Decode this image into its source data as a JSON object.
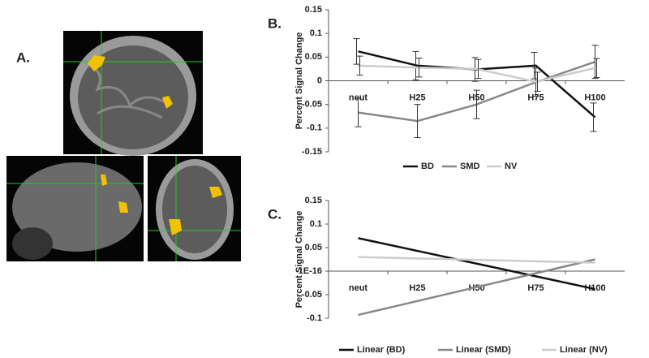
{
  "panel_label": "A.",
  "chart_data": [
    {
      "type": "line",
      "label": "B.",
      "y_label": "Percent Signal Change",
      "categories": [
        "neut",
        "H25",
        "H50",
        "H75",
        "H100"
      ],
      "ylim": [
        -0.15,
        0.15
      ],
      "yticks": [
        -0.15,
        -0.1,
        -0.05,
        0,
        0.05,
        0.1,
        0.15
      ],
      "series": [
        {
          "name": "BD",
          "color": "#111111",
          "values": [
            0.062,
            0.032,
            0.024,
            0.032,
            -0.077
          ],
          "errors": [
            0.027,
            0.03,
            0.025,
            0.028,
            0.03
          ]
        },
        {
          "name": "SMD",
          "color": "#888888",
          "values": [
            -0.067,
            -0.085,
            -0.05,
            -0.003,
            0.04
          ],
          "errors": [
            0.03,
            0.035,
            0.03,
            0.03,
            0.035
          ]
        },
        {
          "name": "NV",
          "color": "#cccccc",
          "values": [
            0.032,
            0.028,
            0.025,
            -0.002,
            0.027
          ],
          "errors": [
            0.02,
            0.02,
            0.02,
            0.02,
            0.02
          ]
        }
      ]
    },
    {
      "type": "line",
      "label": "C.",
      "y_label": "Percent Signal Change",
      "categories": [
        "neut",
        "H25",
        "H50",
        "H75",
        "H100"
      ],
      "ylim": [
        -0.1,
        0.15
      ],
      "yticks": [
        -0.1,
        -0.05,
        {
          "value": 0,
          "label": "1E-16"
        },
        0.05,
        0.1,
        0.15
      ],
      "series": [
        {
          "name": "Linear (BD)",
          "color": "#111111",
          "values": [
            0.07,
            0.043,
            0.016,
            -0.011,
            -0.038
          ]
        },
        {
          "name": "Linear (SMD)",
          "color": "#888888",
          "values": [
            -0.093,
            -0.0635,
            -0.034,
            -0.0045,
            0.025
          ]
        },
        {
          "name": "Linear (NV)",
          "color": "#cccccc",
          "values": [
            0.03,
            0.027,
            0.024,
            0.021,
            0.018
          ]
        }
      ]
    }
  ]
}
